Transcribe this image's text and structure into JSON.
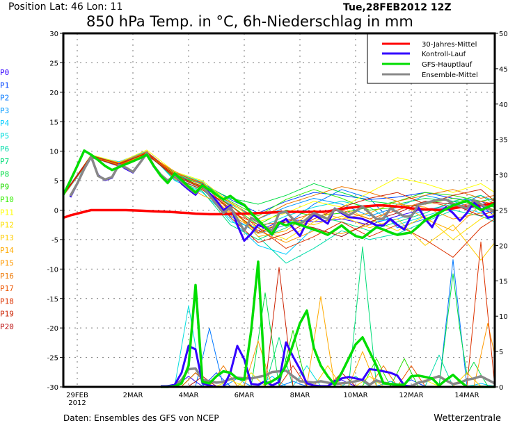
{
  "header": {
    "position": "Position  Lat: 46 Lon: 11",
    "run": "Tue,28FEB2012 12Z",
    "title": "850 hPa Temp. in °C, 6h-Niederschlag in mm"
  },
  "footer": {
    "source": "Daten: Ensembles des GFS von NCEP",
    "brand": "Wetterzentrale"
  },
  "legend": [
    {
      "label": "30-Jahres-Mittel",
      "color": "#ff0000"
    },
    {
      "label": "Kontroll-Lauf",
      "color": "#3300ff"
    },
    {
      "label": "GFS-Hauptlauf",
      "color": "#00dd00"
    },
    {
      "label": "Ensemble-Mittel",
      "color": "#888888"
    }
  ],
  "members": [
    {
      "label": "P0",
      "color": "#3300ff"
    },
    {
      "label": "P1",
      "color": "#0044ff"
    },
    {
      "label": "P2",
      "color": "#0077ff"
    },
    {
      "label": "P3",
      "color": "#0099ff"
    },
    {
      "label": "P4",
      "color": "#00ccff"
    },
    {
      "label": "P5",
      "color": "#00dddd"
    },
    {
      "label": "P6",
      "color": "#00ddaa"
    },
    {
      "label": "P7",
      "color": "#00dd77"
    },
    {
      "label": "P8",
      "color": "#00dd44"
    },
    {
      "label": "P9",
      "color": "#22dd00"
    },
    {
      "label": "P10",
      "color": "#33ee00"
    },
    {
      "label": "P11",
      "color": "#ffff00"
    },
    {
      "label": "P12",
      "color": "#ffe000"
    },
    {
      "label": "P13",
      "color": "#ffcc00"
    },
    {
      "label": "P14",
      "color": "#ffaa00"
    },
    {
      "label": "P15",
      "color": "#ff9900"
    },
    {
      "label": "P16",
      "color": "#ee7700"
    },
    {
      "label": "P17",
      "color": "#ee5500"
    },
    {
      "label": "P18",
      "color": "#dd3300"
    },
    {
      "label": "P19",
      "color": "#cc2200"
    },
    {
      "label": "P20",
      "color": "#bb1111"
    }
  ],
  "chart_data": {
    "type": "line",
    "title": "850 hPa Temp. in °C, 6h-Niederschlag in mm",
    "x_start": "28FEB2012 12Z",
    "x_step": "6h",
    "x_ticks": [
      {
        "label": "29FEB",
        "sub": "2012",
        "day": 1
      },
      {
        "label": "2MAR",
        "day": 3
      },
      {
        "label": "4MAR",
        "day": 5
      },
      {
        "label": "6MAR",
        "day": 7
      },
      {
        "label": "8MAR",
        "day": 9
      },
      {
        "label": "10MAR",
        "day": 11
      },
      {
        "label": "12MAR",
        "day": 13
      },
      {
        "label": "14MAR",
        "day": 15
      }
    ],
    "y_left": {
      "unit": "°C",
      "range": [
        -30,
        30
      ],
      "ticks": [
        "30",
        "25",
        "20",
        "15",
        "10",
        "5",
        "0",
        "-5",
        "-10",
        "-15",
        "-20",
        "-25",
        "-30"
      ]
    },
    "y_right": {
      "unit": "mm",
      "range": [
        0,
        50
      ],
      "ticks": [
        "50",
        "45",
        "40",
        "35",
        "30",
        "25",
        "20",
        "15",
        "10",
        "5",
        "0"
      ]
    },
    "grid": true,
    "legend_position": "top-right",
    "temperature": {
      "climate_mean": [
        -1.3,
        -0.9,
        -0.6,
        -0.3,
        0,
        0,
        0,
        0,
        0,
        0,
        -0.05,
        -0.1,
        -0.15,
        -0.2,
        -0.25,
        -0.3,
        -0.35,
        -0.45,
        -0.5,
        -0.6,
        -0.65,
        -0.7,
        -0.7,
        -0.7,
        -0.65,
        -0.6,
        -0.6,
        -0.55,
        -0.5,
        -0.45,
        -0.4,
        -0.35,
        -0.3,
        -0.3,
        -0.3,
        -0.3,
        -0.3,
        -0.3,
        -0.2,
        0,
        0.2,
        0.4,
        0.5,
        0.6,
        0.7,
        0.8,
        0.8,
        0.7,
        0.6,
        0.5,
        0.3,
        0.2,
        0.1,
        0.1,
        0,
        0.1,
        0.3,
        0.5,
        0.6,
        0.7,
        0.8,
        1.0,
        1.2
      ],
      "control": [
        null,
        2.2,
        4.5,
        7,
        9.0,
        5.9,
        5.1,
        5.5,
        7.8,
        7.0,
        6.4,
        8,
        9.6,
        7.4,
        5.9,
        5.0,
        5.9,
        4.5,
        3.5,
        2.6,
        4.3,
        2.8,
        1.6,
        0.0,
        0.8,
        -2.5,
        -5.2,
        -4.0,
        -2.5,
        -3.0,
        -4.2,
        -2.3,
        -1.5,
        -3.0,
        -4.4,
        -2.0,
        -0.8,
        -1.5,
        -2.3,
        0.3,
        -0.5,
        -1.2,
        -1.3,
        -1.5,
        -2.0,
        -2.6,
        -2.6,
        -1.5,
        -2.5,
        -3.3,
        -1.0,
        0.5,
        -1.5,
        -2.9,
        -0.5,
        0.5,
        -0.5,
        -1.8,
        -0.5,
        1.3,
        0.2,
        -1.3,
        -1.0
      ],
      "gfs_main": [
        2.6,
        5,
        7.5,
        10.1,
        9.4,
        8.5,
        7.5,
        6.8,
        7.3,
        7.8,
        8.3,
        8.8,
        9.4,
        7.5,
        5.8,
        4.6,
        6.2,
        5.1,
        4.0,
        3.0,
        4.2,
        3.4,
        2.6,
        1.8,
        2.4,
        1.5,
        0.9,
        -0.5,
        -1.7,
        -2.9,
        -4.1,
        -2.1,
        -2.6,
        -2.1,
        -2.5,
        -2.9,
        -3.3,
        -3.7,
        -4.2,
        -3.4,
        -2.6,
        -3.6,
        -4.4,
        -4.7,
        -3.8,
        -2.9,
        -3.3,
        -3.8,
        -4.2,
        -4.0,
        -3.8,
        -2.8,
        -1.7,
        -1.1,
        -0.5,
        0.2,
        0.8,
        1.2,
        1.6,
        0.8,
        0,
        0.5,
        1.1
      ],
      "ensemble_mean": [
        null,
        2.4,
        4.5,
        7,
        9.1,
        5.8,
        5.2,
        5.6,
        7.7,
        7.2,
        6.5,
        8,
        9.7,
        7.5,
        6.0,
        5.0,
        5.8,
        4.8,
        3.8,
        2.9,
        4.1,
        2.5,
        1.0,
        -0.5,
        0.5,
        -1.5,
        -3.5,
        -1.3,
        -2.0,
        -2.8,
        -3.5,
        -0.5,
        -0.3,
        -1.5,
        -2.4,
        -1.5,
        -0.5,
        -1.0,
        -1.5,
        0.2,
        -0.3,
        -0.9,
        -0.2,
        0.6,
        -0.5,
        -1.5,
        -1.5,
        0.3,
        -0.4,
        -1.1,
        -1.1,
        0.9,
        1.2,
        1.5,
        1.8,
        1.8,
        1.1,
        0.7,
        0.3,
        1.7,
        1.0,
        0.3,
        -0.3
      ],
      "member_step_index": [
        0,
        4,
        8,
        12,
        16,
        20,
        24,
        28,
        32,
        36,
        40,
        44,
        48,
        52,
        56,
        60,
        62
      ],
      "members": [
        [
          2.5,
          9.0,
          7.6,
          9.6,
          5.9,
          4.0,
          0.0,
          -3.5,
          -1.5,
          -2.0,
          -1.5,
          -2.5,
          -1.0,
          0.2,
          0.5,
          0.8,
          -1.0
        ],
        [
          2.7,
          9.3,
          8.0,
          9.9,
          6.2,
          4.6,
          1.8,
          -0.5,
          1.5,
          3.0,
          2.5,
          1.8,
          2.2,
          3.0,
          2.0,
          1.5,
          0.5
        ],
        [
          2.6,
          9.0,
          7.4,
          9.5,
          5.5,
          3.5,
          -1.0,
          -4.0,
          -2.5,
          1.0,
          3.5,
          2.0,
          -3.0,
          -1.5,
          0.5,
          2.5,
          1.5
        ],
        [
          2.4,
          8.8,
          7.9,
          9.8,
          6.0,
          4.5,
          1.0,
          -1.5,
          0.5,
          2.0,
          1.0,
          -1.0,
          0.5,
          2.5,
          1.5,
          0.0,
          -0.5
        ],
        [
          2.6,
          9.2,
          8.2,
          10.0,
          5.0,
          3.0,
          -1.5,
          -6.0,
          -7.5,
          -3.0,
          -4.5,
          -2.0,
          -1.5,
          0.0,
          1.0,
          -0.5,
          -1.5
        ],
        [
          2.5,
          9.1,
          7.5,
          9.4,
          5.7,
          3.8,
          -2.0,
          -3.0,
          -1.0,
          0.5,
          1.5,
          0.5,
          -2.5,
          -1.0,
          0.5,
          1.0,
          0.0
        ],
        [
          2.7,
          9.0,
          7.8,
          9.7,
          6.4,
          4.8,
          0.5,
          -4.5,
          -9.0,
          -6.5,
          -3.5,
          -5.0,
          -4.0,
          -2.0,
          0.0,
          -1.0,
          -2.0
        ],
        [
          2.6,
          9.3,
          7.6,
          9.9,
          5.2,
          3.2,
          -2.5,
          -5.0,
          -3.0,
          -1.0,
          -2.0,
          -3.5,
          -2.0,
          -0.5,
          1.5,
          2.5,
          1.0
        ],
        [
          2.5,
          8.9,
          7.7,
          9.6,
          6.1,
          4.3,
          2.0,
          1.0,
          2.5,
          4.5,
          3.0,
          1.5,
          1.0,
          2.0,
          1.5,
          1.0,
          0.5
        ],
        [
          2.6,
          9.2,
          7.9,
          9.5,
          5.6,
          4.1,
          0.8,
          -2.5,
          0.0,
          -1.0,
          -0.5,
          0.5,
          1.5,
          3.0,
          2.5,
          1.5,
          2.0
        ],
        [
          2.7,
          9.1,
          7.6,
          9.8,
          5.8,
          4.4,
          1.5,
          -1.0,
          1.8,
          3.5,
          2.0,
          0.0,
          0.5,
          1.0,
          2.0,
          1.0,
          0.5
        ],
        [
          2.5,
          9.4,
          8.1,
          10.2,
          6.5,
          5.0,
          1.2,
          -2.0,
          -0.5,
          1.5,
          0.5,
          3.0,
          5.5,
          4.5,
          3.0,
          4.5,
          3.0
        ],
        [
          2.6,
          9.0,
          7.5,
          9.6,
          5.9,
          3.6,
          -0.5,
          -3.0,
          -5.0,
          -2.0,
          0.5,
          -1.5,
          -3.5,
          -1.0,
          -5.0,
          -1.5,
          -0.5
        ],
        [
          2.4,
          9.1,
          7.8,
          9.7,
          6.2,
          4.7,
          0.2,
          -4.0,
          -1.5,
          -2.5,
          -1.0,
          -3.0,
          -1.5,
          -6.0,
          -2.5,
          -8.5,
          -5.5
        ],
        [
          2.6,
          9.3,
          7.4,
          10.0,
          5.4,
          2.5,
          0.5,
          -4.5,
          -3.5,
          0.0,
          -1.5,
          -0.5,
          1.5,
          -1.5,
          -3.5,
          1.0,
          0.0
        ],
        [
          2.5,
          8.9,
          7.7,
          9.5,
          6.6,
          4.2,
          -0.8,
          -3.5,
          -5.5,
          -3.5,
          -4.0,
          -2.5,
          1.0,
          0.5,
          -1.5,
          -0.5,
          2.0
        ],
        [
          2.7,
          9.2,
          8.0,
          9.9,
          5.7,
          3.9,
          1.3,
          -1.5,
          1.0,
          2.5,
          4.0,
          3.0,
          1.5,
          2.5,
          3.5,
          2.0,
          2.5
        ],
        [
          2.6,
          9.0,
          7.6,
          9.8,
          6.3,
          4.6,
          -0.3,
          -2.5,
          -2.0,
          -0.5,
          0.0,
          -1.5,
          0.0,
          1.5,
          0.5,
          1.5,
          1.0
        ],
        [
          2.5,
          9.1,
          7.9,
          9.6,
          5.5,
          3.4,
          0.8,
          -3.0,
          -6.5,
          -4.5,
          -2.0,
          -4.5,
          -2.5,
          -5.0,
          -8.0,
          -3.0,
          -1.5
        ],
        [
          2.6,
          9.3,
          7.8,
          9.7,
          6.0,
          4.0,
          -1.2,
          -5.5,
          -4.0,
          -1.5,
          0.5,
          2.0,
          3.0,
          1.0,
          2.5,
          3.5,
          1.5
        ],
        [
          2.7,
          9.0,
          7.5,
          9.4,
          5.8,
          3.7,
          0.3,
          -3.8,
          -2.0,
          -3.0,
          -4.5,
          -2.0,
          -0.5,
          1.5,
          1.0,
          -1.0,
          0.0
        ]
      ]
    },
    "precipitation": {
      "control": [
        null,
        null,
        null,
        null,
        null,
        null,
        null,
        null,
        null,
        null,
        null,
        null,
        null,
        null,
        0.1,
        0.1,
        0.3,
        2,
        5.8,
        5.3,
        0.5,
        0.2,
        0,
        0,
        2,
        5.8,
        3.9,
        0.4,
        0.3,
        0.8,
        0.2,
        0.7,
        6.3,
        4.3,
        2.5,
        0.5,
        0.2,
        0.1,
        0.1,
        0.8,
        1.2,
        1.4,
        1.2,
        1.0,
        2.5,
        2.4,
        2.2,
        2.0,
        1.6,
        0.2,
        0,
        0,
        0,
        0,
        0,
        0,
        0,
        0,
        0,
        0,
        0,
        0,
        0
      ],
      "gfs_main": [
        null,
        null,
        null,
        null,
        null,
        null,
        null,
        null,
        null,
        null,
        null,
        null,
        null,
        null,
        0,
        0,
        0.1,
        0.5,
        3,
        14.4,
        0.7,
        0.5,
        1.5,
        2.2,
        2,
        1.2,
        1,
        8,
        17.7,
        0.4,
        0.8,
        1.4,
        3,
        6,
        9,
        10.8,
        5.5,
        3,
        1.5,
        0.3,
        2,
        4,
        6,
        7,
        5,
        3,
        0.5,
        0.4,
        0.3,
        0.3,
        1.5,
        1.6,
        1.4,
        1.2,
        0.2,
        1.0,
        1.7,
        0.8,
        0,
        0,
        0,
        0,
        0
      ],
      "ensemble_mean": [
        null,
        null,
        null,
        null,
        null,
        null,
        null,
        null,
        null,
        null,
        null,
        null,
        null,
        null,
        0,
        0.1,
        0.2,
        1.0,
        2.5,
        2.6,
        1.0,
        0.8,
        0.6,
        0.7,
        1.1,
        1.3,
        1.2,
        1.2,
        1.4,
        1.6,
        2.1,
        2.2,
        2.3,
        1.5,
        0.8,
        0.7,
        0.6,
        0.8,
        0.6,
        0.4,
        0.5,
        0.6,
        0.8,
        1.0,
        0.3,
        0.9,
        0.6,
        0.4,
        0.2,
        0.1,
        0.1,
        0.6,
        0.8,
        1.2,
        1.5,
        0.9,
        0.4,
        0.6,
        1.0,
        1.2,
        1.5,
        1.0,
        0.5
      ],
      "member_peaks": [
        [
          [
            18,
            1.5
          ],
          [
            40,
            1
          ]
        ],
        [
          [
            22,
            2
          ],
          [
            50,
            1
          ]
        ],
        [
          [
            21,
            8.3
          ],
          [
            56,
            18
          ],
          [
            33,
            0.8
          ]
        ],
        [
          [
            25,
            1.2
          ],
          [
            47,
            0.8
          ]
        ],
        [
          [
            30,
            1.5
          ],
          [
            60,
            0.5
          ]
        ],
        [
          [
            18,
            11.5
          ],
          [
            35,
            3
          ]
        ],
        [
          [
            42,
            1.5
          ],
          [
            54,
            4.5
          ]
        ],
        [
          [
            43,
            19.8
          ],
          [
            31,
            7
          ]
        ],
        [
          [
            29,
            13.3
          ],
          [
            56,
            16
          ],
          [
            59,
            3.5
          ]
        ],
        [
          [
            33,
            8
          ],
          [
            49,
            4
          ]
        ],
        [
          [
            45,
            4
          ],
          [
            19,
            2
          ]
        ],
        [
          [
            24,
            1
          ],
          [
            52,
            1
          ]
        ],
        [
          [
            27,
            2
          ],
          [
            44,
            1.5
          ]
        ],
        [
          [
            38,
            3
          ],
          [
            58,
            2
          ]
        ],
        [
          [
            37,
            12.8
          ],
          [
            43,
            5
          ]
        ],
        [
          [
            28,
            6.5
          ],
          [
            61,
            9
          ]
        ],
        [
          [
            23,
            3
          ],
          [
            46,
            3
          ]
        ],
        [
          [
            19,
            2
          ],
          [
            50,
            3
          ]
        ],
        [
          [
            60,
            20.5
          ],
          [
            33,
            3
          ]
        ],
        [
          [
            31,
            16.9
          ]
        ],
        [
          [
            20,
            1.5
          ],
          [
            40,
            2
          ]
        ]
      ]
    }
  }
}
